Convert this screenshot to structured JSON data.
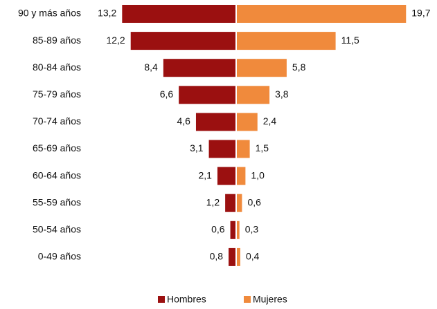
{
  "chart_data": {
    "type": "bar",
    "orientation": "horizontal-diverging",
    "categories": [
      "90 y más años",
      "85-89 años",
      "80-84 años",
      "75-79 años",
      "70-74 años",
      "65-69 años",
      "60-64 años",
      "55-59 años",
      "50-54 años",
      "0-49 años"
    ],
    "series": [
      {
        "name": "Hombres",
        "color": "#9b1010",
        "side": "left",
        "values": [
          13.2,
          12.2,
          8.4,
          6.6,
          4.6,
          3.1,
          2.1,
          1.2,
          0.6,
          0.8
        ],
        "value_labels": [
          "13,2",
          "12,2",
          "8,4",
          "6,6",
          "4,6",
          "3,1",
          "2,1",
          "1,2",
          "0,6",
          "0,8"
        ]
      },
      {
        "name": "Mujeres",
        "color": "#f08a3c",
        "side": "right",
        "values": [
          19.7,
          11.5,
          5.8,
          3.8,
          2.4,
          1.5,
          1.0,
          0.6,
          0.3,
          0.4
        ],
        "value_labels": [
          "19,7",
          "11,5",
          "5,8",
          "3,8",
          "2,4",
          "1,5",
          "1,0",
          "0,6",
          "0,3",
          "0,4"
        ]
      }
    ],
    "legend": "bottom"
  }
}
